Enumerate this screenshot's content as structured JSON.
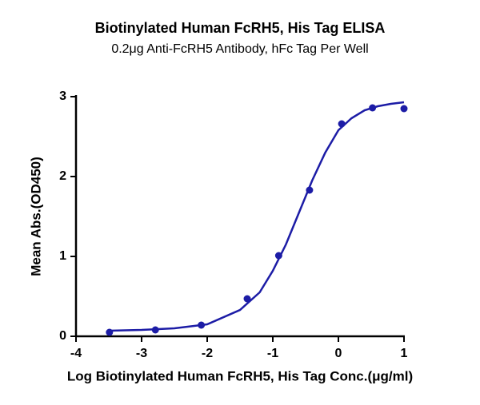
{
  "chart_data": {
    "type": "scatter",
    "title": "Biotinylated Human FcRH5, His Tag ELISA",
    "subtitle": "0.2μg Anti-FcRH5 Antibody, hFc Tag Per Well",
    "x_label": "Log Biotinylated Human FcRH5, His Tag Conc.(μg/ml)",
    "y_label": "Mean Abs.(OD450)",
    "xlim": [
      -4,
      1
    ],
    "xticks": [
      -4,
      -3,
      -2,
      -1,
      0,
      1
    ],
    "ylim": [
      0,
      3
    ],
    "yticks": [
      0,
      1,
      2,
      3
    ],
    "series": [
      {
        "style": "markers",
        "color": "#1c1ca6",
        "x": [
          -3.49,
          -2.79,
          -2.09,
          -1.39,
          -0.91,
          -0.44,
          0.05,
          0.52,
          1.0
        ],
        "values": [
          0.05,
          0.08,
          0.14,
          0.47,
          1.01,
          1.83,
          2.66,
          2.86,
          2.85
        ]
      },
      {
        "style": "line",
        "color": "#1c1ca6",
        "x": [
          -3.5,
          -3,
          -2.5,
          -2,
          -1.5,
          -1.2,
          -1,
          -0.8,
          -0.6,
          -0.4,
          -0.2,
          0,
          0.2,
          0.4,
          0.6,
          0.8,
          1
        ],
        "values": [
          0.07,
          0.08,
          0.1,
          0.15,
          0.33,
          0.55,
          0.82,
          1.15,
          1.55,
          1.95,
          2.3,
          2.58,
          2.73,
          2.83,
          2.88,
          2.91,
          2.93
        ]
      }
    ]
  }
}
